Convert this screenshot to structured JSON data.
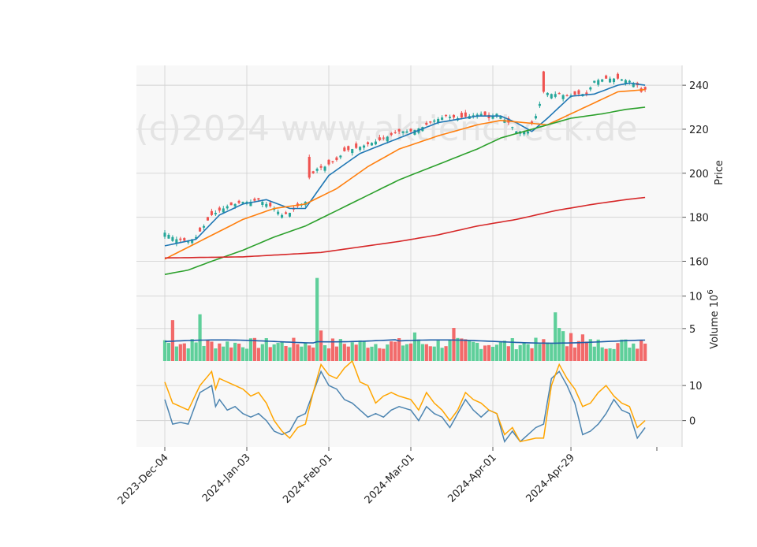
{
  "chart_data": {
    "type": "candlestick",
    "watermark": "(c)2024 www.aktiencheck.de",
    "grid": true,
    "x_tick_labels": [
      "2023-Dec-04",
      "2024-Jan-03",
      "2024-Feb-01",
      "2024-Mar-01",
      "2024-Apr-01",
      "2024-Apr-29"
    ],
    "x_tick_index": [
      0,
      21,
      42,
      63,
      84,
      104
    ],
    "n_sessions": 126,
    "colors": {
      "up": "#26a69a",
      "down": "#ef5350",
      "up_vol": "#5ecf9a",
      "down_vol": "#f26a6a",
      "ma1": "#1f77b4",
      "ma2": "#ff7f0e",
      "ma3": "#2ca02c",
      "ma4": "#d62728",
      "osc1": "#4c84b0",
      "osc2": "#ffa500"
    },
    "panels": [
      {
        "name": "price",
        "ylabel": "Price",
        "ylim": [
          153,
          249
        ],
        "yticks": [
          160,
          180,
          200,
          220,
          240
        ],
        "ohlc_close_anchors": [
          [
            0,
            173
          ],
          [
            3,
            170
          ],
          [
            6,
            169
          ],
          [
            8,
            171
          ],
          [
            10,
            176
          ],
          [
            12,
            181
          ],
          [
            14,
            183
          ],
          [
            16,
            185
          ],
          [
            18,
            186
          ],
          [
            20,
            187
          ],
          [
            22,
            187
          ],
          [
            24,
            188
          ],
          [
            26,
            186
          ],
          [
            28,
            184
          ],
          [
            30,
            181
          ],
          [
            32,
            182
          ],
          [
            34,
            185
          ],
          [
            36,
            187
          ],
          [
            37,
            198
          ],
          [
            39,
            202
          ],
          [
            41,
            203
          ],
          [
            44,
            206
          ],
          [
            46,
            210
          ],
          [
            50,
            212
          ],
          [
            55,
            215
          ],
          [
            60,
            219
          ],
          [
            63,
            219
          ],
          [
            66,
            221
          ],
          [
            69,
            224
          ],
          [
            72,
            226
          ],
          [
            75,
            225
          ],
          [
            78,
            226
          ],
          [
            81,
            227
          ],
          [
            83,
            225
          ],
          [
            85,
            227
          ],
          [
            88,
            223
          ],
          [
            90,
            219
          ],
          [
            93,
            219
          ],
          [
            95,
            226
          ],
          [
            97,
            237
          ],
          [
            99,
            236
          ],
          [
            101,
            236
          ],
          [
            103,
            235
          ],
          [
            106,
            236
          ],
          [
            108,
            236
          ],
          [
            110,
            242
          ],
          [
            113,
            243
          ],
          [
            116,
            243
          ],
          [
            119,
            242
          ],
          [
            121,
            240
          ],
          [
            122,
            237
          ],
          [
            123,
            238
          ]
        ],
        "moving_averages": [
          {
            "anchors": [
              [
                0,
                167
              ],
              [
                8,
                170
              ],
              [
                14,
                181
              ],
              [
                20,
                186
              ],
              [
                26,
                188
              ],
              [
                32,
                184
              ],
              [
                36,
                184
              ],
              [
                42,
                199
              ],
              [
                50,
                209
              ],
              [
                60,
                216
              ],
              [
                70,
                223
              ],
              [
                80,
                226
              ],
              [
                86,
                226
              ],
              [
                90,
                223
              ],
              [
                94,
                219
              ],
              [
                98,
                225
              ],
              [
                104,
                235
              ],
              [
                110,
                236
              ],
              [
                116,
                240
              ],
              [
                119,
                241
              ],
              [
                123,
                240
              ]
            ]
          },
          {
            "anchors": [
              [
                0,
                161
              ],
              [
                10,
                170
              ],
              [
                20,
                179
              ],
              [
                28,
                184
              ],
              [
                36,
                186
              ],
              [
                44,
                193
              ],
              [
                52,
                203
              ],
              [
                60,
                211
              ],
              [
                70,
                217
              ],
              [
                80,
                222
              ],
              [
                86,
                224
              ],
              [
                92,
                223
              ],
              [
                98,
                222
              ],
              [
                104,
                227
              ],
              [
                110,
                232
              ],
              [
                116,
                237
              ],
              [
                123,
                238
              ]
            ]
          },
          {
            "anchors": [
              [
                0,
                154
              ],
              [
                6,
                156
              ],
              [
                12,
                160
              ],
              [
                20,
                165
              ],
              [
                28,
                171
              ],
              [
                36,
                176
              ],
              [
                44,
                183
              ],
              [
                52,
                190
              ],
              [
                60,
                197
              ],
              [
                70,
                204
              ],
              [
                80,
                211
              ],
              [
                86,
                216
              ],
              [
                92,
                219
              ],
              [
                98,
                222
              ],
              [
                104,
                225
              ],
              [
                112,
                227
              ],
              [
                118,
                229
              ],
              [
                123,
                230
              ]
            ]
          },
          {
            "anchors": [
              [
                0,
                161.5
              ],
              [
                20,
                162
              ],
              [
                40,
                164
              ],
              [
                60,
                169
              ],
              [
                70,
                172
              ],
              [
                80,
                176
              ],
              [
                90,
                179
              ],
              [
                100,
                183
              ],
              [
                110,
                186
              ],
              [
                118,
                188
              ],
              [
                123,
                189
              ]
            ]
          }
        ]
      },
      {
        "name": "volume",
        "ylabel": "Volume  10^6",
        "ylim": [
          0,
          13
        ],
        "yticks": [
          5,
          10
        ],
        "avg_level": 3.0,
        "spikes": [
          [
            2,
            6.3,
            "down"
          ],
          [
            9,
            7.2,
            "up"
          ],
          [
            39,
            12.8,
            "up"
          ],
          [
            40,
            4.7,
            "down"
          ],
          [
            64,
            4.4,
            "up"
          ],
          [
            74,
            5.1,
            "down"
          ],
          [
            100,
            7.5,
            "up"
          ],
          [
            101,
            5.1,
            "up"
          ],
          [
            102,
            4.6,
            "up"
          ],
          [
            104,
            4.3,
            "down"
          ],
          [
            107,
            4.1,
            "down"
          ],
          [
            122,
            3.2,
            "down"
          ]
        ]
      },
      {
        "name": "oscillator",
        "ylim": [
          -7.5,
          17
        ],
        "yticks": [
          0,
          10
        ],
        "lines": [
          {
            "anchors": [
              [
                0,
                6
              ],
              [
                2,
                -1
              ],
              [
                4,
                -0.5
              ],
              [
                6,
                -1
              ],
              [
                9,
                8
              ],
              [
                12,
                10
              ],
              [
                13,
                4
              ],
              [
                14,
                6
              ],
              [
                16,
                3
              ],
              [
                18,
                4
              ],
              [
                20,
                2
              ],
              [
                22,
                1
              ],
              [
                24,
                2
              ],
              [
                26,
                0
              ],
              [
                28,
                -3
              ],
              [
                30,
                -4
              ],
              [
                32,
                -3
              ],
              [
                34,
                1
              ],
              [
                36,
                2
              ],
              [
                38,
                8
              ],
              [
                40,
                14
              ],
              [
                42,
                10
              ],
              [
                44,
                9
              ],
              [
                46,
                6
              ],
              [
                48,
                5
              ],
              [
                50,
                3
              ],
              [
                52,
                1
              ],
              [
                54,
                2
              ],
              [
                56,
                1
              ],
              [
                58,
                3
              ],
              [
                60,
                4
              ],
              [
                63,
                3
              ],
              [
                65,
                0
              ],
              [
                67,
                4
              ],
              [
                69,
                2
              ],
              [
                71,
                1
              ],
              [
                73,
                -2
              ],
              [
                75,
                2
              ],
              [
                77,
                6
              ],
              [
                79,
                3
              ],
              [
                81,
                1
              ],
              [
                83,
                3
              ],
              [
                85,
                2
              ],
              [
                87,
                -6
              ],
              [
                89,
                -3
              ],
              [
                91,
                -6
              ],
              [
                93,
                -4
              ],
              [
                95,
                -2
              ],
              [
                97,
                -1
              ],
              [
                99,
                12
              ],
              [
                101,
                14
              ],
              [
                103,
                10
              ],
              [
                105,
                5
              ],
              [
                107,
                -4
              ],
              [
                109,
                -3
              ],
              [
                111,
                -1
              ],
              [
                113,
                2
              ],
              [
                115,
                6
              ],
              [
                117,
                3
              ],
              [
                119,
                2
              ],
              [
                121,
                -5
              ],
              [
                123,
                -2
              ]
            ]
          },
          {
            "anchors": [
              [
                0,
                11
              ],
              [
                2,
                5
              ],
              [
                4,
                4
              ],
              [
                6,
                3
              ],
              [
                9,
                10
              ],
              [
                12,
                14
              ],
              [
                13,
                9
              ],
              [
                14,
                12
              ],
              [
                16,
                11
              ],
              [
                18,
                10
              ],
              [
                20,
                9
              ],
              [
                22,
                7
              ],
              [
                24,
                8
              ],
              [
                26,
                5
              ],
              [
                28,
                0
              ],
              [
                30,
                -3
              ],
              [
                32,
                -5
              ],
              [
                34,
                -2
              ],
              [
                36,
                -1
              ],
              [
                38,
                8
              ],
              [
                40,
                16
              ],
              [
                42,
                13
              ],
              [
                44,
                12
              ],
              [
                46,
                15
              ],
              [
                48,
                17
              ],
              [
                50,
                11
              ],
              [
                52,
                10
              ],
              [
                54,
                5
              ],
              [
                56,
                7
              ],
              [
                58,
                8
              ],
              [
                60,
                7
              ],
              [
                63,
                6
              ],
              [
                65,
                3
              ],
              [
                67,
                8
              ],
              [
                69,
                5
              ],
              [
                71,
                3
              ],
              [
                73,
                0
              ],
              [
                75,
                3
              ],
              [
                77,
                8
              ],
              [
                79,
                6
              ],
              [
                81,
                5
              ],
              [
                83,
                3
              ],
              [
                85,
                2
              ],
              [
                87,
                -4
              ],
              [
                89,
                -2
              ],
              [
                91,
                -6
              ],
              [
                93,
                -5.5
              ],
              [
                95,
                -5
              ],
              [
                97,
                -5
              ],
              [
                99,
                10
              ],
              [
                101,
                16
              ],
              [
                103,
                12
              ],
              [
                105,
                9
              ],
              [
                107,
                4
              ],
              [
                109,
                5
              ],
              [
                111,
                8
              ],
              [
                113,
                10
              ],
              [
                115,
                7
              ],
              [
                117,
                5
              ],
              [
                119,
                4
              ],
              [
                121,
                -2
              ],
              [
                123,
                0
              ]
            ]
          }
        ]
      }
    ]
  }
}
